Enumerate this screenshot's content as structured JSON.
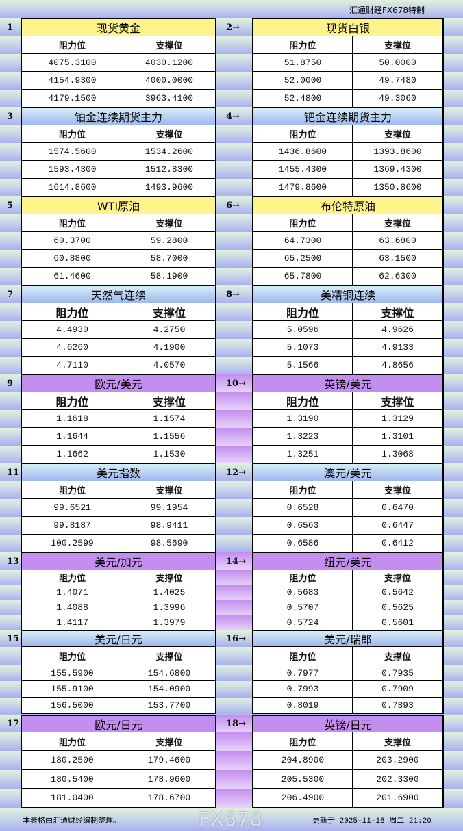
{
  "header": {
    "brand": "汇通财经FX678特制"
  },
  "columns": {
    "resistance": "阻力位",
    "support": "支撑位"
  },
  "sections": [
    {
      "index": "1",
      "name": "现货黄金",
      "color": "yellow",
      "rows": [
        [
          "4075.3100",
          "4030.1200"
        ],
        [
          "4154.9300",
          "4000.0000"
        ],
        [
          "4179.1500",
          "3963.4100"
        ]
      ]
    },
    {
      "index": "2→",
      "name": "现货白银",
      "color": "yellow",
      "rows": [
        [
          "51.8750",
          "50.0000"
        ],
        [
          "52.0000",
          "49.7480"
        ],
        [
          "52.4800",
          "49.3060"
        ]
      ]
    },
    {
      "index": "3",
      "name": "铂金连续期货主力",
      "color": "blue",
      "rows": [
        [
          "1574.5600",
          "1534.2600"
        ],
        [
          "1593.4300",
          "1512.8300"
        ],
        [
          "1614.8600",
          "1493.9600"
        ]
      ]
    },
    {
      "index": "4→",
      "name": "钯金连续期货主力",
      "color": "blue",
      "rows": [
        [
          "1436.8600",
          "1393.8600"
        ],
        [
          "1455.4300",
          "1369.4300"
        ],
        [
          "1479.8600",
          "1350.8600"
        ]
      ]
    },
    {
      "index": "5",
      "name": "WTI原油",
      "color": "yellow",
      "rows": [
        [
          "60.3700",
          "59.2800"
        ],
        [
          "60.8800",
          "58.7000"
        ],
        [
          "61.4600",
          "58.1900"
        ]
      ]
    },
    {
      "index": "6→",
      "name": "布伦特原油",
      "color": "yellow",
      "rows": [
        [
          "64.7300",
          "63.6800"
        ],
        [
          "65.2500",
          "63.1500"
        ],
        [
          "65.7800",
          "62.6300"
        ]
      ]
    },
    {
      "index": "7",
      "name": "天然气连续",
      "color": "blue",
      "rows": [
        [
          "4.4930",
          "4.2750"
        ],
        [
          "4.6260",
          "4.1900"
        ],
        [
          "4.7110",
          "4.0570"
        ]
      ]
    },
    {
      "index": "8→",
      "name": "美精铜连续",
      "color": "blue",
      "rows": [
        [
          "5.0596",
          "4.9626"
        ],
        [
          "5.1073",
          "4.9133"
        ],
        [
          "5.1566",
          "4.8656"
        ]
      ]
    },
    {
      "index": "9",
      "name": "欧元/美元",
      "color": "purple",
      "rows": [
        [
          "1.1618",
          "1.1574"
        ],
        [
          "1.1644",
          "1.1556"
        ],
        [
          "1.1662",
          "1.1530"
        ]
      ]
    },
    {
      "index": "10→",
      "name": "英镑/美元",
      "color": "purple",
      "rows": [
        [
          "1.3190",
          "1.3129"
        ],
        [
          "1.3223",
          "1.3101"
        ],
        [
          "1.3251",
          "1.3068"
        ]
      ]
    },
    {
      "index": "11",
      "name": "美元指数",
      "color": "blue",
      "rows": [
        [
          "99.6521",
          "99.1954"
        ],
        [
          "99.8187",
          "98.9411"
        ],
        [
          "100.2599",
          "98.5690"
        ]
      ]
    },
    {
      "index": "12→",
      "name": "澳元/美元",
      "color": "blue",
      "rows": [
        [
          "0.6528",
          "0.6470"
        ],
        [
          "0.6563",
          "0.6447"
        ],
        [
          "0.6586",
          "0.6412"
        ]
      ]
    },
    {
      "index": "13",
      "name": "美元/加元",
      "color": "purple",
      "rows": [
        [
          "1.4071",
          "1.4025"
        ],
        [
          "1.4088",
          "1.3996"
        ],
        [
          "1.4117",
          "1.3979"
        ]
      ]
    },
    {
      "index": "14→",
      "name": "纽元/美元",
      "color": "purple",
      "rows": [
        [
          "0.5683",
          "0.5642"
        ],
        [
          "0.5707",
          "0.5625"
        ],
        [
          "0.5724",
          "0.5601"
        ]
      ]
    },
    {
      "index": "15",
      "name": "美元/日元",
      "color": "blue",
      "rows": [
        [
          "155.5900",
          "154.6800"
        ],
        [
          "155.9100",
          "154.0900"
        ],
        [
          "156.5000",
          "153.7700"
        ]
      ]
    },
    {
      "index": "16→",
      "name": "美元/瑞郎",
      "color": "blue",
      "rows": [
        [
          "0.7977",
          "0.7935"
        ],
        [
          "0.7993",
          "0.7909"
        ],
        [
          "0.8019",
          "0.7893"
        ]
      ]
    },
    {
      "index": "17",
      "name": "欧元/日元",
      "color": "purple",
      "rows": [
        [
          "180.2500",
          "179.4600"
        ],
        [
          "180.5400",
          "178.9600"
        ],
        [
          "181.0400",
          "178.6700"
        ]
      ]
    },
    {
      "index": "18→",
      "name": "英镑/日元",
      "color": "purple",
      "rows": [
        [
          "204.8900",
          "203.2900"
        ],
        [
          "205.5300",
          "202.3300"
        ],
        [
          "206.4900",
          "201.6900"
        ]
      ]
    }
  ],
  "footer": {
    "note": "本表格由汇通财经编制整理。",
    "updated": "更新于 2025-11-18 周二 21:20"
  },
  "watermark": "FX678"
}
